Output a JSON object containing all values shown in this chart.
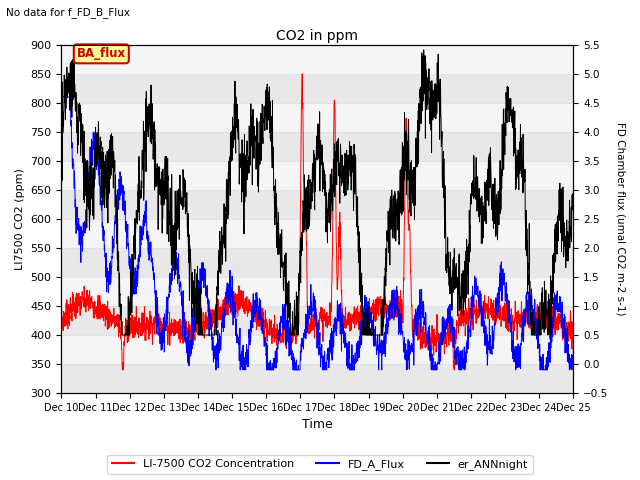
{
  "title": "CO2 in ppm",
  "subtitle": "No data for f_FD_B_Flux",
  "xlabel": "Time",
  "ylabel_left": "LI7500 CO2 (ppm)",
  "ylabel_right": "FD Chamber flux (umal CO2 m-2 s-1)",
  "ylim_left": [
    300,
    900
  ],
  "ylim_right": [
    -0.5,
    5.5
  ],
  "yticks_left": [
    300,
    350,
    400,
    450,
    500,
    550,
    600,
    650,
    700,
    750,
    800,
    850,
    900
  ],
  "yticks_right": [
    -0.5,
    0.0,
    0.5,
    1.0,
    1.5,
    2.0,
    2.5,
    3.0,
    3.5,
    4.0,
    4.5,
    5.0,
    5.5
  ],
  "xtick_labels": [
    "Dec 10",
    "Dec 11",
    "Dec 12",
    "Dec 13",
    "Dec 14",
    "Dec 15",
    "Dec 16",
    "Dec 17",
    "Dec 18",
    "Dec 19",
    "Dec 20",
    "Dec 21",
    "Dec 22",
    "Dec 23",
    "Dec 24",
    "Dec 25"
  ],
  "color_red": "#ff0000",
  "color_blue": "#0000ff",
  "color_black": "#000000",
  "legend_entries": [
    "LI-7500 CO2 Concentration",
    "FD_A_Flux",
    "er_ANNnight"
  ],
  "ba_flux_label": "BA_flux",
  "ba_flux_color": "#cc0000",
  "ba_flux_bg": "#ffff99",
  "grid_color": "#e0e0e0",
  "background_color": "#ebebeb",
  "n_points": 2160
}
